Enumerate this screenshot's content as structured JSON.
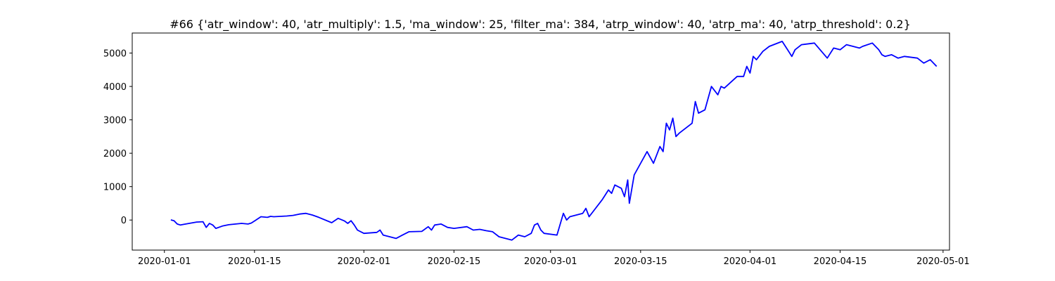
{
  "chart_data": {
    "type": "line",
    "title": "#66 {'atr_window': 40, 'atr_multiply': 1.5, 'ma_window': 25, 'filter_ma': 384, 'atrp_window': 40, 'atrp_ma': 40, 'atrp_threshold': 0.2}",
    "xlabel": "",
    "ylabel": "",
    "xlim": [
      "2019-12-27",
      "2020-05-02"
    ],
    "ylim": [
      -900,
      5600
    ],
    "x_ticks": [
      "2020-01-01",
      "2020-01-15",
      "2020-02-01",
      "2020-02-15",
      "2020-03-01",
      "2020-03-15",
      "2020-04-01",
      "2020-04-15",
      "2020-05-01"
    ],
    "y_ticks": [
      0,
      1000,
      2000,
      3000,
      4000,
      5000
    ],
    "grid": false,
    "colors": {
      "line": "#0000ff",
      "axes": "#000000"
    },
    "series": [
      {
        "x": [
          "2020-01-02",
          "2020-01-02T12:00",
          "2020-01-03",
          "2020-01-03T12:00",
          "2020-01-04",
          "2020-01-06",
          "2020-01-07",
          "2020-01-07T12:00",
          "2020-01-08",
          "2020-01-08T12:00",
          "2020-01-09",
          "2020-01-10",
          "2020-01-11",
          "2020-01-13",
          "2020-01-14",
          "2020-01-14T12:00",
          "2020-01-15",
          "2020-01-16",
          "2020-01-17",
          "2020-01-17T12:00",
          "2020-01-18",
          "2020-01-20",
          "2020-01-21",
          "2020-01-22",
          "2020-01-23",
          "2020-01-24",
          "2020-01-25",
          "2020-01-27",
          "2020-01-28",
          "2020-01-29",
          "2020-01-29T12:00",
          "2020-01-30",
          "2020-01-30T12:00",
          "2020-01-31",
          "2020-02-01",
          "2020-02-03",
          "2020-02-03T12:00",
          "2020-02-04",
          "2020-02-05",
          "2020-02-06",
          "2020-02-07",
          "2020-02-08",
          "2020-02-10",
          "2020-02-11",
          "2020-02-11T12:00",
          "2020-02-12",
          "2020-02-13",
          "2020-02-14",
          "2020-02-15",
          "2020-02-17",
          "2020-02-18",
          "2020-02-19",
          "2020-02-20",
          "2020-02-21",
          "2020-02-22",
          "2020-02-24",
          "2020-02-25",
          "2020-02-26",
          "2020-02-27",
          "2020-02-27T12:00",
          "2020-02-28",
          "2020-02-28T12:00",
          "2020-02-29",
          "2020-03-02",
          "2020-03-03",
          "2020-03-03T12:00",
          "2020-03-04",
          "2020-03-05",
          "2020-03-06",
          "2020-03-06T12:00",
          "2020-03-07",
          "2020-03-09",
          "2020-03-09T12:00",
          "2020-03-10",
          "2020-03-10T12:00",
          "2020-03-11",
          "2020-03-12",
          "2020-03-12T12:00",
          "2020-03-13",
          "2020-03-13T06:00",
          "2020-03-14",
          "2020-03-16",
          "2020-03-17",
          "2020-03-18",
          "2020-03-18T12:00",
          "2020-03-19",
          "2020-03-19T12:00",
          "2020-03-20",
          "2020-03-20T12:00",
          "2020-03-21",
          "2020-03-23",
          "2020-03-23T12:00",
          "2020-03-24",
          "2020-03-25",
          "2020-03-26",
          "2020-03-27",
          "2020-03-27T12:00",
          "2020-03-28",
          "2020-03-30",
          "2020-03-31",
          "2020-03-31T12:00",
          "2020-04-01",
          "2020-04-01T12:00",
          "2020-04-02",
          "2020-04-03",
          "2020-04-04",
          "2020-04-06",
          "2020-04-07",
          "2020-04-07T12:00",
          "2020-04-08",
          "2020-04-09",
          "2020-04-11",
          "2020-04-13",
          "2020-04-14",
          "2020-04-15",
          "2020-04-16",
          "2020-04-17",
          "2020-04-18",
          "2020-04-18T12:00",
          "2020-04-20",
          "2020-04-21",
          "2020-04-21T12:00",
          "2020-04-22",
          "2020-04-23",
          "2020-04-24",
          "2020-04-25",
          "2020-04-27",
          "2020-04-28",
          "2020-04-29",
          "2020-04-30"
        ],
        "values": [
          5,
          -20,
          -120,
          -150,
          -130,
          -60,
          -50,
          -220,
          -100,
          -150,
          -250,
          -180,
          -140,
          -100,
          -120,
          -90,
          -30,
          100,
          80,
          110,
          100,
          120,
          140,
          180,
          200,
          150,
          80,
          -80,
          50,
          -30,
          -100,
          -20,
          -150,
          -300,
          -400,
          -370,
          -300,
          -450,
          -500,
          -550,
          -450,
          -350,
          -340,
          -200,
          -300,
          -150,
          -120,
          -220,
          -250,
          -200,
          -300,
          -280,
          -320,
          -350,
          -500,
          -600,
          -450,
          -500,
          -400,
          -150,
          -100,
          -300,
          -400,
          -450,
          200,
          0,
          100,
          150,
          200,
          350,
          100,
          600,
          750,
          900,
          800,
          1050,
          950,
          700,
          1200,
          500,
          1350,
          2050,
          1700,
          2200,
          2050,
          2900,
          2700,
          3050,
          2500,
          2600,
          2900,
          3550,
          3200,
          3300,
          4000,
          3750,
          4000,
          3950,
          4300,
          4300,
          4600,
          4400,
          4900,
          4800,
          5050,
          5200,
          5350,
          5050,
          4900,
          5100,
          5250,
          5300,
          4850,
          5150,
          5100,
          5250,
          5200,
          5150,
          5200,
          5300,
          5100,
          4950,
          4900,
          4950,
          4850,
          4900,
          4850,
          4700,
          4800,
          4600
        ]
      }
    ]
  }
}
